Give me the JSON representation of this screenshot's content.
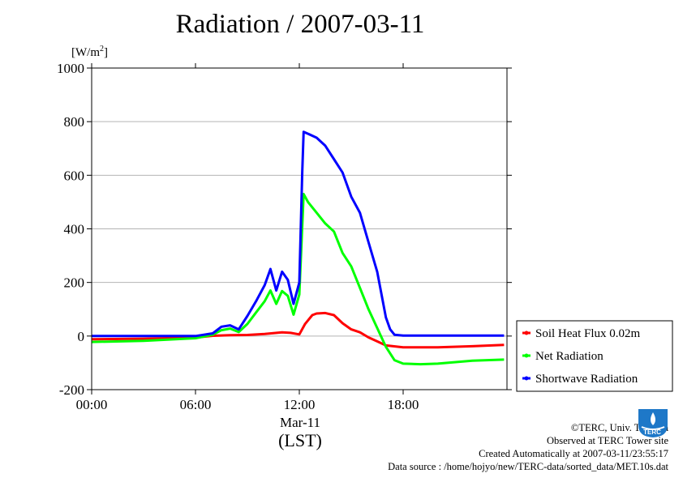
{
  "header": {
    "title": "Radiation / 2007-03-11",
    "unit_prefix": "[W/m",
    "unit_sup": "2",
    "unit_suffix": "]"
  },
  "chart_data": {
    "type": "line",
    "title": "Radiation / 2007-03-11",
    "ylabel": "[W/m2]",
    "xlabel": "(LST)",
    "date_label": "Mar-11",
    "ylim": [
      -200,
      1000
    ],
    "xlim": [
      "00:00",
      "24:00"
    ],
    "y_ticks": [
      -200,
      0,
      200,
      400,
      600,
      800,
      1000
    ],
    "y_tick_labels": [
      "-200",
      "0",
      "200",
      "400",
      "600",
      "800",
      "1000"
    ],
    "x_ticks": [
      "00:00",
      "06:00",
      "12:00",
      "18:00"
    ],
    "x_tick_labels": [
      "00:00",
      "06:00",
      "12:00",
      "18:00"
    ],
    "grid": true,
    "legend_position": "right",
    "series": [
      {
        "name": "Soil Heat Flux 0.02m",
        "color": "#ff0000",
        "x": [
          "00:00",
          "03:00",
          "06:00",
          "07:00",
          "08:00",
          "09:00",
          "10:00",
          "11:00",
          "11:30",
          "12:00",
          "12:20",
          "12:45",
          "13:00",
          "13:30",
          "14:00",
          "14:30",
          "15:00",
          "15:30",
          "16:00",
          "16:30",
          "17:00",
          "18:00",
          "20:00",
          "22:00",
          "23:50"
        ],
        "values": [
          -12,
          -10,
          -6,
          1,
          3,
          4,
          8,
          14,
          12,
          6,
          45,
          78,
          84,
          86,
          78,
          48,
          25,
          14,
          -5,
          -20,
          -35,
          -42,
          -42,
          -38,
          -33
        ]
      },
      {
        "name": "Net Radiation",
        "color": "#00ff00",
        "x": [
          "00:00",
          "03:00",
          "06:00",
          "07:00",
          "07:30",
          "08:00",
          "08:30",
          "09:00",
          "09:30",
          "10:00",
          "10:20",
          "10:40",
          "11:00",
          "11:20",
          "11:40",
          "12:00",
          "12:15",
          "12:30",
          "13:00",
          "13:30",
          "14:00",
          "14:30",
          "15:00",
          "15:30",
          "16:00",
          "16:30",
          "17:00",
          "17:30",
          "18:00",
          "19:00",
          "20:00",
          "22:00",
          "23:50"
        ],
        "values": [
          -22,
          -18,
          -8,
          5,
          22,
          28,
          15,
          45,
          88,
          130,
          170,
          120,
          168,
          150,
          80,
          155,
          530,
          500,
          460,
          420,
          390,
          310,
          260,
          180,
          100,
          30,
          -40,
          -90,
          -103,
          -105,
          -103,
          -92,
          -88
        ]
      },
      {
        "name": "Shortwave Radiation",
        "color": "#0000ff",
        "x": [
          "00:00",
          "03:00",
          "06:00",
          "07:00",
          "07:30",
          "08:00",
          "08:30",
          "09:00",
          "09:30",
          "10:00",
          "10:20",
          "10:40",
          "11:00",
          "11:20",
          "11:40",
          "12:00",
          "12:10",
          "12:15",
          "12:30",
          "13:00",
          "13:30",
          "14:00",
          "14:30",
          "15:00",
          "15:30",
          "16:00",
          "16:30",
          "17:00",
          "17:15",
          "17:30",
          "18:00",
          "20:00",
          "22:00",
          "23:50"
        ],
        "values": [
          0,
          0,
          0,
          10,
          35,
          40,
          25,
          75,
          130,
          190,
          250,
          170,
          240,
          210,
          120,
          200,
          610,
          762,
          755,
          740,
          710,
          660,
          610,
          520,
          460,
          350,
          240,
          70,
          25,
          5,
          2,
          2,
          2,
          2
        ]
      }
    ]
  },
  "legend": {
    "items": [
      {
        "label": "Soil Heat Flux 0.02m",
        "color": "#ff0000"
      },
      {
        "label": "Net Radiation",
        "color": "#00ff00"
      },
      {
        "label": "Shortwave Radiation",
        "color": "#0000ff"
      }
    ]
  },
  "credits": {
    "line1": "©TERC, Univ. Tsukuba",
    "line2": "Observed at TERC Tower site",
    "line3": "Created Automatically at 2007-03-11/23:55:17",
    "line4": "Data source : /home/hojyo/new/TERC-data/sorted_data/MET.10s.dat"
  },
  "logo": {
    "text": "TERC",
    "color": "#1e78c8"
  }
}
